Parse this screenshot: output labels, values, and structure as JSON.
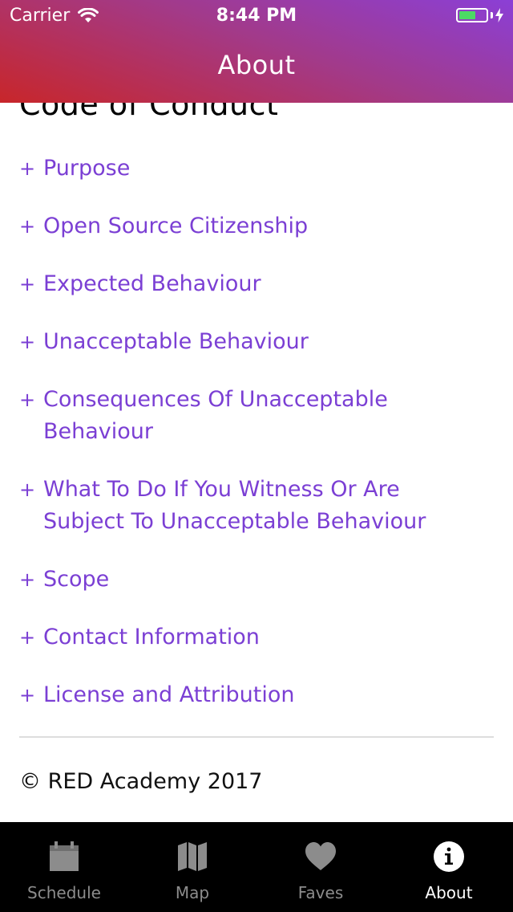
{
  "status_bar": {
    "carrier": "Carrier",
    "time": "8:44 PM",
    "battery_color": "#4cd964"
  },
  "nav": {
    "title": "About"
  },
  "content": {
    "section_heading": "Code of Conduct",
    "items": [
      {
        "icon": "+",
        "label": "Purpose"
      },
      {
        "icon": "+",
        "label": "Open Source Citizenship"
      },
      {
        "icon": "+",
        "label": "Expected Behaviour"
      },
      {
        "icon": "+",
        "label": "Unacceptable Behaviour"
      },
      {
        "icon": "+",
        "label": "Consequences Of Unacceptable Behaviour"
      },
      {
        "icon": "+",
        "label": "What To Do If You Witness Or Are Subject To Unacceptable Behaviour"
      },
      {
        "icon": "+",
        "label": "Scope"
      },
      {
        "icon": "+",
        "label": "Contact Information"
      },
      {
        "icon": "+",
        "label": "License and Attribution"
      }
    ],
    "copyright": "© RED Academy 2017"
  },
  "tab_bar": {
    "tabs": [
      {
        "label": "Schedule",
        "icon": "calendar-icon",
        "active": false
      },
      {
        "label": "Map",
        "icon": "map-icon",
        "active": false
      },
      {
        "label": "Faves",
        "icon": "heart-icon",
        "active": false
      },
      {
        "label": "About",
        "icon": "info-icon",
        "active": true
      }
    ]
  },
  "colors": {
    "accent": "#7b3fd4",
    "header_gradient_start": "#8b3fd6",
    "header_gradient_end": "#c8262a",
    "tab_bar_bg": "#000000",
    "tab_inactive": "#8c8c8c",
    "tab_active": "#ffffff"
  }
}
